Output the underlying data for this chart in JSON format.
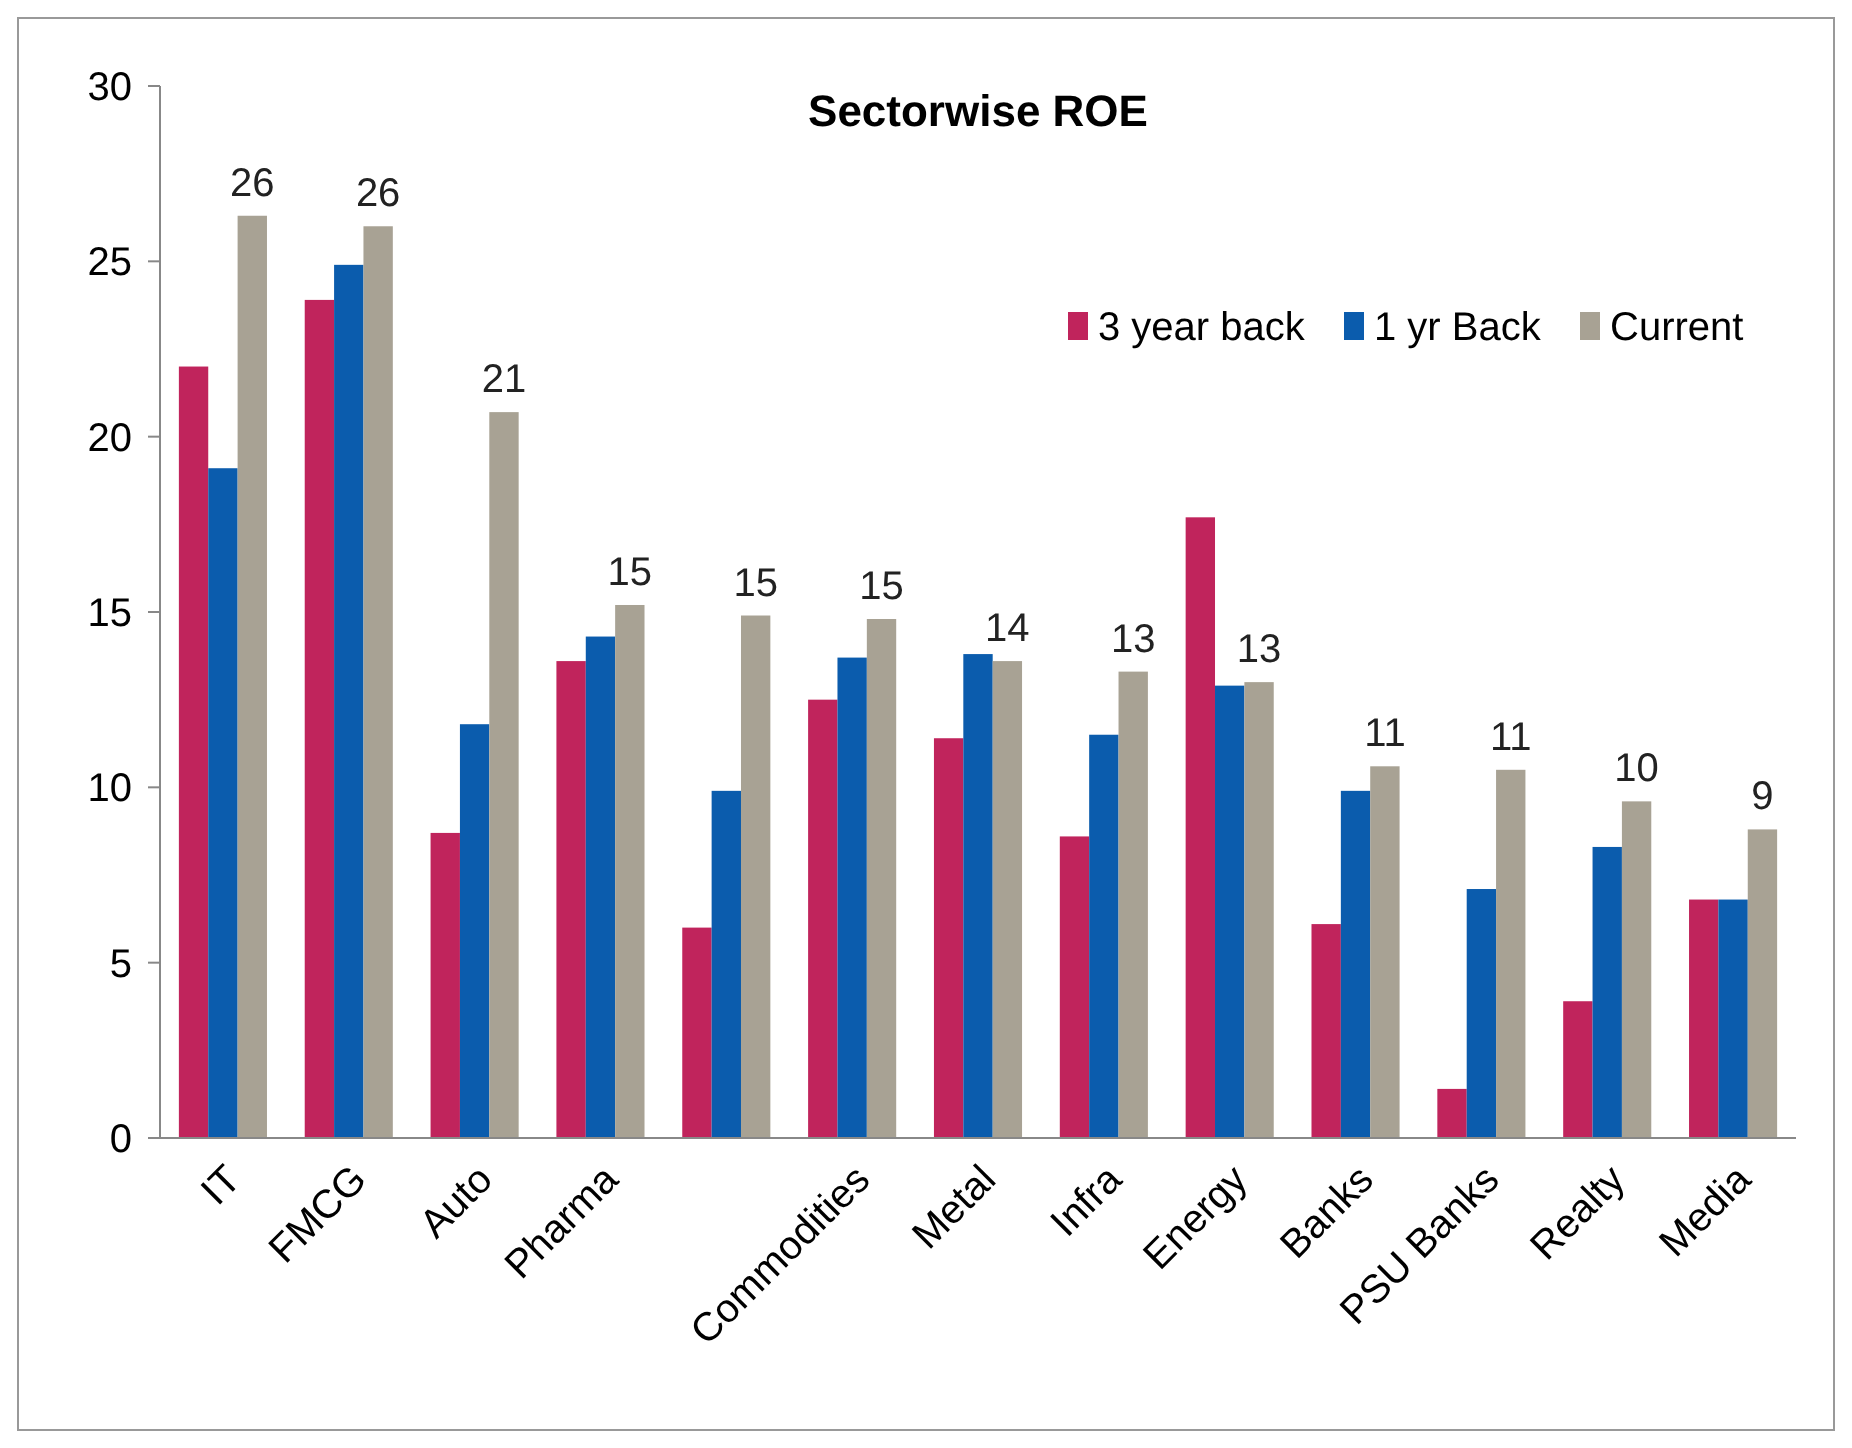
{
  "chart_data": {
    "type": "bar",
    "title": "Sectorwise ROE",
    "categories": [
      "IT",
      "FMCG",
      "Auto",
      "Pharma",
      null,
      "Commodities",
      "Metal",
      "Infra",
      "Energy",
      "Banks",
      "PSU Banks",
      "Realty",
      "Media"
    ],
    "series": [
      {
        "name": "3 year back",
        "color": "#c0245c",
        "values": [
          22.0,
          23.9,
          8.7,
          13.6,
          6.0,
          12.5,
          11.4,
          8.6,
          17.7,
          6.1,
          1.4,
          3.9,
          6.8
        ]
      },
      {
        "name": "1 yr Back",
        "color": "#0b5cad",
        "values": [
          19.1,
          24.9,
          11.8,
          14.3,
          9.9,
          13.7,
          13.8,
          11.5,
          12.9,
          9.9,
          7.1,
          8.3,
          6.8
        ]
      },
      {
        "name": "Current",
        "color": "#a8a294",
        "values": [
          26.3,
          26.0,
          20.7,
          15.2,
          14.9,
          14.8,
          13.6,
          13.3,
          13.0,
          10.6,
          10.5,
          9.6,
          8.8
        ],
        "value_labels": [
          "26",
          "26",
          "21",
          "15",
          "15",
          "15",
          "14",
          "13",
          "13",
          "11",
          "11",
          "10",
          "9"
        ]
      }
    ],
    "ylim": [
      0,
      30
    ],
    "yticks": [
      0,
      5,
      10,
      15,
      20,
      25,
      30
    ],
    "grid": false,
    "legend": "top right"
  }
}
